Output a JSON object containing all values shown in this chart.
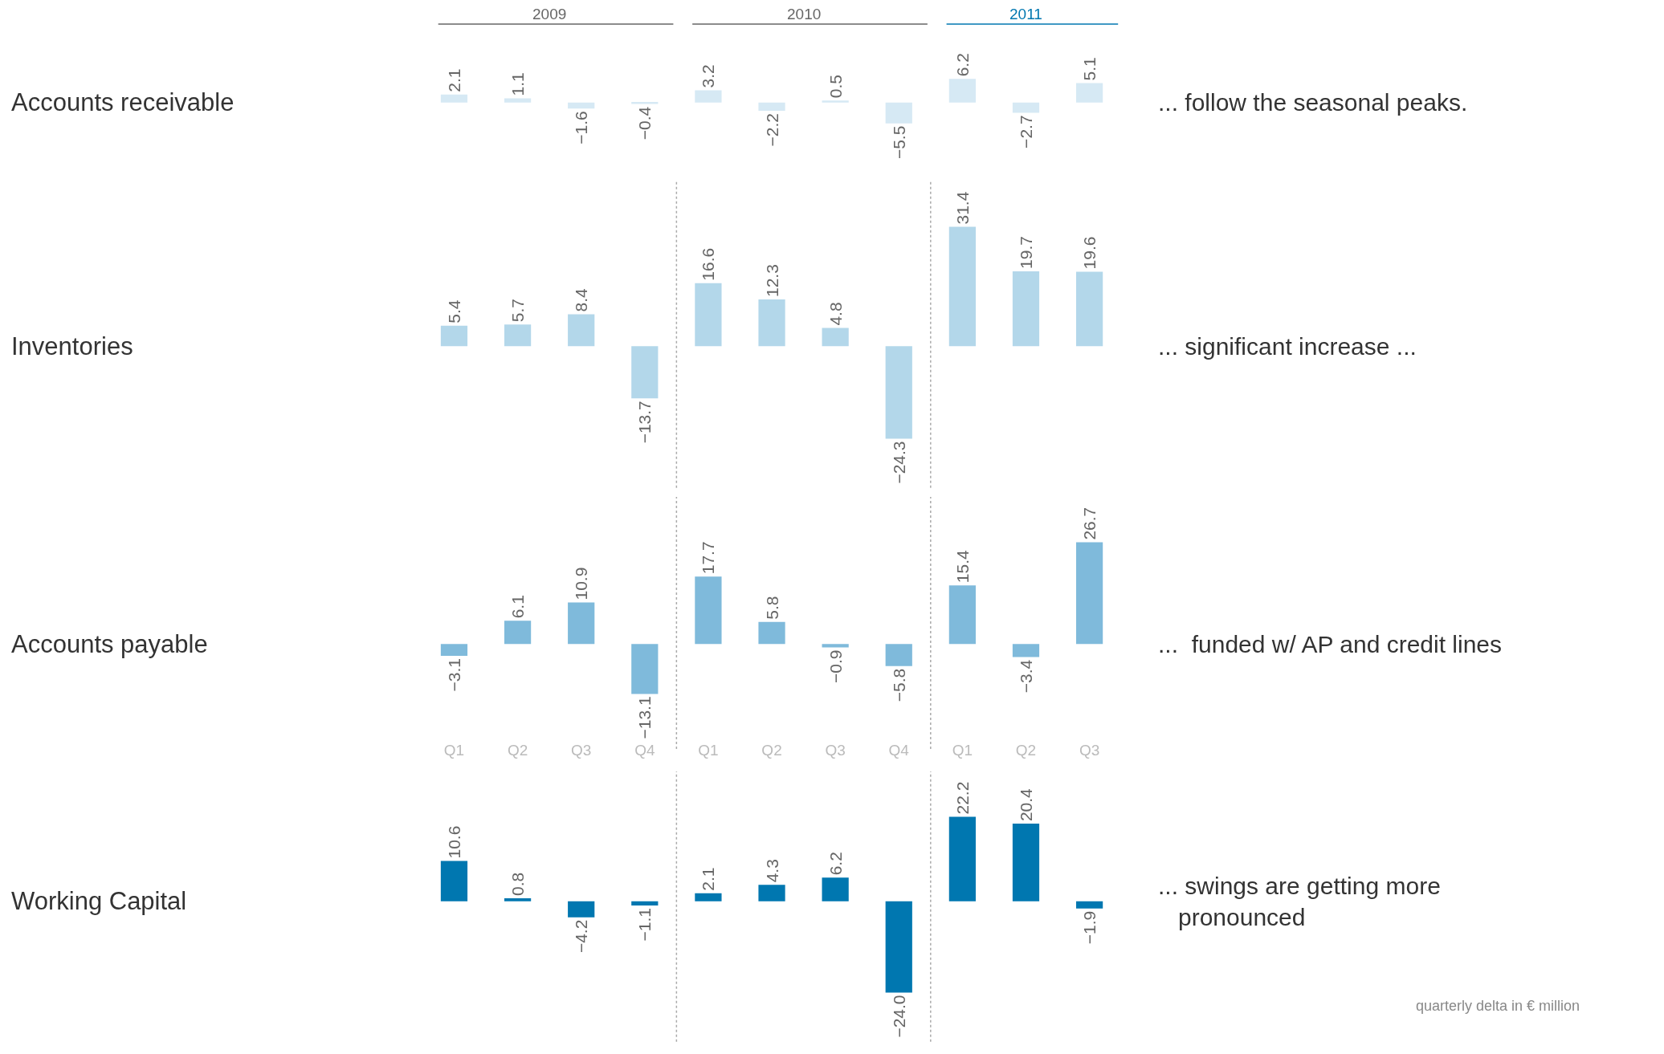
{
  "chart_data": [
    {
      "type": "bar",
      "ylabel": "Accounts receivable",
      "categories": [
        "Q1",
        "Q2",
        "Q3",
        "Q4",
        "Q1",
        "Q2",
        "Q3",
        "Q4",
        "Q1",
        "Q2",
        "Q3"
      ],
      "values": [
        2.1,
        1.1,
        -1.6,
        -0.4,
        3.2,
        -2.2,
        0.5,
        -5.5,
        6.2,
        -2.7,
        5.1
      ],
      "value_labels": [
        "2.1",
        "1.1",
        "−1.6",
        "−0.4",
        "3.2",
        "−2.2",
        "0.5",
        "−5.5",
        "6.2",
        "−2.7",
        "5.1"
      ],
      "color": "#d6e9f4",
      "tick_labels": false,
      "annotations": [
        "... follow the seasonal peaks.",
        "2009",
        "2010",
        "2011"
      ]
    },
    {
      "type": "bar",
      "ylabel": "Inventories",
      "categories": [
        "Q1",
        "Q2",
        "Q3",
        "Q4",
        "Q1",
        "Q2",
        "Q3",
        "Q4",
        "Q1",
        "Q2",
        "Q3"
      ],
      "values": [
        5.4,
        5.7,
        8.4,
        -13.7,
        16.6,
        12.3,
        4.8,
        -24.3,
        31.4,
        19.7,
        19.6
      ],
      "value_labels": [
        "5.4",
        "5.7",
        "8.4",
        "−13.7",
        "16.6",
        "12.3",
        "4.8",
        "−24.3",
        "31.4",
        "19.7",
        "19.6"
      ],
      "color": "#b3d7ea",
      "tick_labels": false,
      "annotations": [
        "... significant increase ..."
      ]
    },
    {
      "type": "bar",
      "ylabel": "Accounts payable",
      "categories": [
        "Q1",
        "Q2",
        "Q3",
        "Q4",
        "Q1",
        "Q2",
        "Q3",
        "Q4",
        "Q1",
        "Q2",
        "Q3"
      ],
      "values": [
        -3.1,
        6.1,
        10.9,
        -13.1,
        17.7,
        5.8,
        -0.9,
        -5.8,
        15.4,
        -3.4,
        26.7
      ],
      "value_labels": [
        "−3.1",
        "6.1",
        "10.9",
        "−13.1",
        "17.7",
        "5.8",
        "−0.9",
        "−5.8",
        "15.4",
        "−3.4",
        "26.7"
      ],
      "color": "#7fbadb",
      "tick_labels": "x",
      "annotations": [
        "...  funded w/ AP and credit lines"
      ]
    },
    {
      "type": "bar",
      "ylabel": "Working Capital",
      "categories": [
        null,
        null,
        null,
        null,
        null,
        null,
        null,
        null,
        null,
        null,
        null
      ],
      "values": [
        10.6,
        0.8,
        -4.2,
        -1.1,
        2.1,
        4.3,
        6.2,
        -24.0,
        22.2,
        20.4,
        -1.9
      ],
      "value_labels": [
        "10.6",
        "0.8",
        "−4.2",
        "−1.1",
        "2.1",
        "4.3",
        "6.2",
        "−24.0",
        "22.2",
        "20.4",
        "−1.9"
      ],
      "color": "#0077b0",
      "tick_labels": false,
      "annotations": [
        "... swings are getting more\n   pronounced",
        "quarterly delta in € million"
      ]
    }
  ]
}
